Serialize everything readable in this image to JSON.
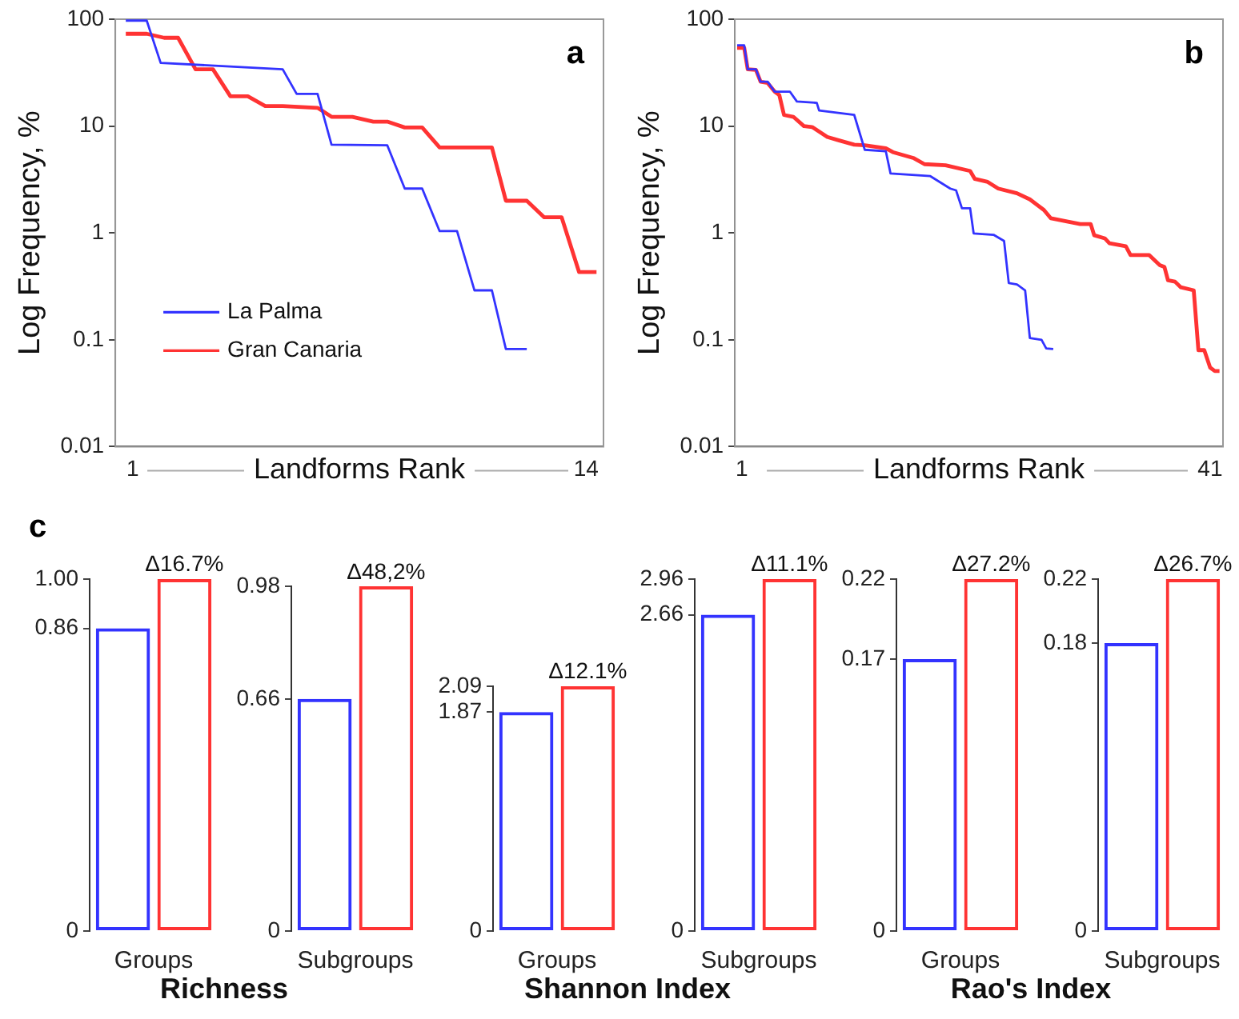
{
  "chart_data": [
    {
      "type": "line",
      "annotations": [
        "a"
      ],
      "xlabel": "Landforms Rank",
      "ylabel": "Log Frequency, %",
      "log": "y",
      "xlim": [
        0.5,
        14.5
      ],
      "xticks": [
        1,
        14
      ],
      "ylim": [
        0.01,
        100
      ],
      "yticks": [
        0.01,
        0.1,
        1,
        10,
        100
      ],
      "legend": "bottom left",
      "series": [
        {
          "name": "La Palma",
          "color": "#3333ff",
          "x": [
            0.8,
            1.4,
            1.8,
            5.3,
            5.7,
            6.3,
            6.7,
            8.3,
            8.8,
            9.3,
            9.8,
            10.3,
            10.8,
            11.3,
            11.7,
            12.3
          ],
          "values": [
            97,
            97,
            39,
            34,
            20,
            20,
            6.7,
            6.6,
            2.6,
            2.6,
            1.04,
            1.04,
            0.29,
            0.29,
            0.082,
            0.082
          ]
        },
        {
          "name": "Gran Canaria",
          "color": "#ff3333",
          "x": [
            0.8,
            1.4,
            1.9,
            2.3,
            2.8,
            3.3,
            3.8,
            4.3,
            4.8,
            5.3,
            6.3,
            6.7,
            7.3,
            7.9,
            8.3,
            8.8,
            9.3,
            9.8,
            11.3,
            11.7,
            12.3,
            12.8,
            13.3,
            13.8,
            14.3
          ],
          "values": [
            73,
            73,
            67,
            67,
            34,
            34,
            19,
            19,
            15.4,
            15.4,
            14.8,
            12.2,
            12.2,
            11,
            11,
            9.7,
            9.7,
            6.3,
            6.3,
            2,
            2,
            1.4,
            1.4,
            0.43,
            0.43
          ]
        }
      ]
    },
    {
      "type": "line",
      "annotations": [
        "b"
      ],
      "xlabel": "Landforms Rank",
      "ylabel": "Log Frequency, %",
      "log": "y",
      "xlim": [
        0.4,
        42.1
      ],
      "xticks": [
        1,
        41
      ],
      "ylim": [
        0.01,
        100
      ],
      "yticks": [
        0.01,
        0.1,
        1,
        10,
        100
      ],
      "series": [
        {
          "color": "#3333ff",
          "x": [
            0.6,
            1.2,
            1.5,
            2.2,
            2.6,
            3.2,
            3.8,
            5.1,
            5.7,
            7.4,
            7.6,
            10.6,
            11.5,
            13.3,
            13.7,
            17.1,
            18.8,
            19.3,
            19.8,
            20.5,
            20.8,
            22.5,
            23.4,
            23.8,
            24.5,
            25.2,
            25.6,
            26.6,
            27,
            27.6
          ],
          "values": [
            57,
            57,
            34,
            34,
            26,
            26,
            21,
            21,
            17,
            16.5,
            14,
            12.7,
            6,
            5.8,
            3.6,
            3.4,
            2.6,
            2.5,
            1.7,
            1.7,
            0.99,
            0.96,
            0.84,
            0.34,
            0.33,
            0.29,
            0.104,
            0.1,
            0.083,
            0.082
          ]
        },
        {
          "color": "#ff3333",
          "x": [
            0.6,
            1.2,
            1.5,
            2.2,
            2.6,
            3.2,
            3.8,
            4.2,
            4.6,
            5.4,
            6.3,
            7,
            8.3,
            9.2,
            10.6,
            11.5,
            13.3,
            13.9,
            15.7,
            16.6,
            18.4,
            20.5,
            20.9,
            22,
            22.9,
            24.5,
            25.6,
            26.8,
            27.4,
            28.6,
            29.9,
            30.8,
            31.1,
            32,
            32.4,
            33.8,
            34.2,
            35.8,
            36.7,
            37.1,
            37.4,
            38,
            38.5,
            39.6,
            40,
            40.5,
            41,
            41.4,
            41.8
          ],
          "values": [
            54,
            54,
            34,
            33.5,
            26,
            25.3,
            21,
            19.5,
            12.7,
            12.2,
            10,
            9.8,
            7.9,
            7.4,
            6.7,
            6.6,
            6.2,
            5.7,
            5,
            4.4,
            4.3,
            3.8,
            3.2,
            3,
            2.6,
            2.35,
            2.06,
            1.64,
            1.37,
            1.29,
            1.21,
            1.21,
            0.95,
            0.89,
            0.8,
            0.75,
            0.62,
            0.62,
            0.5,
            0.48,
            0.36,
            0.35,
            0.31,
            0.29,
            0.08,
            0.08,
            0.055,
            0.051,
            0.051
          ]
        }
      ]
    },
    {
      "type": "bar",
      "title": "Richness",
      "annotations": [
        "c",
        {
          "text": "Δ16.7%",
          "x": "Groups",
          "y": 1
        }
      ],
      "categories": [
        "Groups"
      ],
      "ylim": [
        0,
        1
      ],
      "yticks": [
        0,
        0.86,
        {
          "value": 1,
          "label": "1.00"
        }
      ],
      "series": [
        {
          "color": "#3333ff",
          "values": [
            0.86
          ]
        },
        {
          "color": "#ff3333",
          "values": [
            1
          ]
        }
      ]
    },
    {
      "type": "bar",
      "annotations": [
        {
          "text": "Δ48,2%",
          "x": "Subgroups",
          "y": 0.98
        }
      ],
      "categories": [
        "Subgroups"
      ],
      "ylim": [
        0,
        0.98
      ],
      "yticks": [
        0,
        0.66,
        0.98
      ],
      "series": [
        {
          "color": "#3333ff",
          "values": [
            0.66
          ]
        },
        {
          "color": "#ff3333",
          "values": [
            0.98
          ]
        }
      ]
    },
    {
      "type": "bar",
      "title": "Shannon Index",
      "annotations": [
        {
          "text": "Δ12.1%",
          "x": "Groups",
          "y": 2.09
        }
      ],
      "categories": [
        "Groups"
      ],
      "ylim": [
        0,
        2.09
      ],
      "yticks": [
        0,
        1.87,
        2.09
      ],
      "series": [
        {
          "color": "#3333ff",
          "values": [
            1.87
          ]
        },
        {
          "color": "#ff3333",
          "values": [
            2.09
          ]
        }
      ]
    },
    {
      "type": "bar",
      "annotations": [
        {
          "text": "Δ11.1%",
          "x": "Subgroups",
          "y": 2.96
        }
      ],
      "categories": [
        "Subgroups"
      ],
      "ylim": [
        0,
        2.96
      ],
      "yticks": [
        0,
        2.66,
        2.96
      ],
      "series": [
        {
          "color": "#3333ff",
          "values": [
            2.66
          ]
        },
        {
          "color": "#ff3333",
          "values": [
            2.96
          ]
        }
      ]
    },
    {
      "type": "bar",
      "title": "Rao's Index",
      "annotations": [
        {
          "text": "Δ27.2%",
          "x": "Groups",
          "y": 0.22
        }
      ],
      "categories": [
        "Groups"
      ],
      "ylim": [
        0,
        0.22
      ],
      "yticks": [
        0,
        0.17,
        0.22
      ],
      "series": [
        {
          "color": "#3333ff",
          "values": [
            0.17
          ]
        },
        {
          "color": "#ff3333",
          "values": [
            0.22
          ]
        }
      ]
    },
    {
      "type": "bar",
      "annotations": [
        {
          "text": "Δ26.7%",
          "x": "Subgroups",
          "y": 0.22
        }
      ],
      "categories": [
        "Subgroups"
      ],
      "ylim": [
        0,
        0.22
      ],
      "yticks": [
        0,
        0.18,
        0.22
      ],
      "series": [
        {
          "color": "#3333ff",
          "values": [
            0.18
          ]
        },
        {
          "color": "#ff3333",
          "values": [
            0.22
          ]
        }
      ]
    }
  ]
}
